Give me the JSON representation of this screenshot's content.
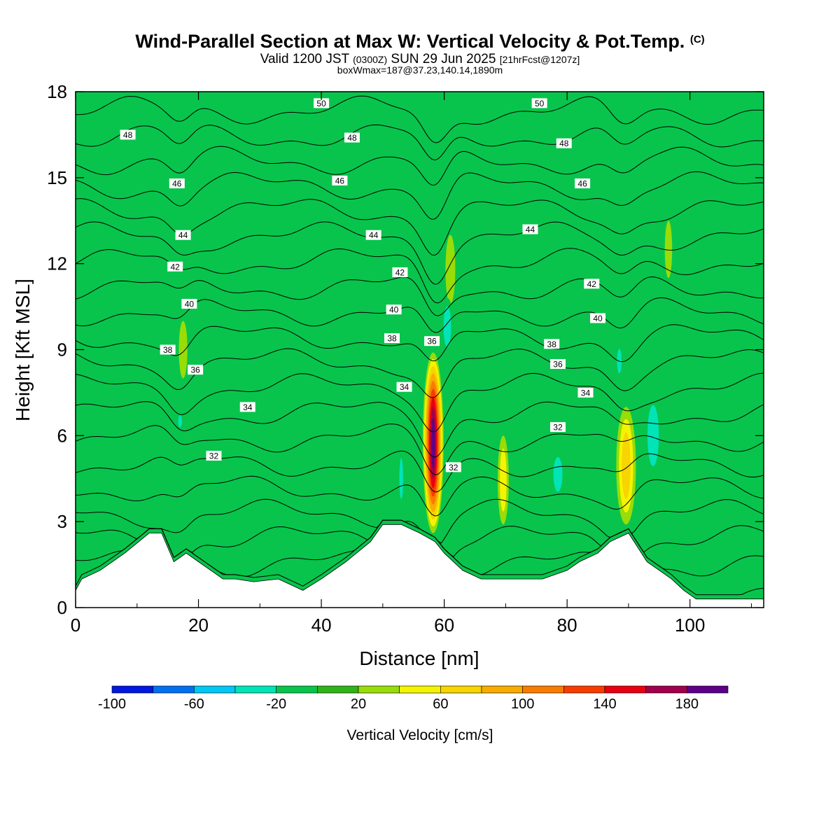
{
  "title": {
    "main": "Wind-Parallel Section at Max W: Vertical Velocity & Pot.Temp.",
    "copyright": "(C)",
    "valid_prefix": "Valid 1200 JST",
    "valid_utc": "(0300Z)",
    "valid_date": "SUN 29 Jun 2025",
    "forecast": "[21hrFcst@1207z]",
    "boxwmax": "boxWmax=187@37.23,140.14,1890m"
  },
  "chart_data": {
    "type": "heatmap",
    "xlabel": "Distance [nm]",
    "ylabel": "Height [Kft MSL]",
    "xlim": [
      0,
      112
    ],
    "ylim": [
      0,
      18
    ],
    "x_ticks": [
      0,
      20,
      40,
      60,
      80,
      100
    ],
    "y_ticks": [
      0,
      3,
      6,
      9,
      12,
      15,
      18
    ],
    "colorbar": {
      "title": "Vertical Velocity [cm/s]",
      "ticks": [
        -100,
        -60,
        -20,
        20,
        60,
        100,
        140,
        180
      ],
      "range": [
        -100,
        200
      ],
      "step": 20,
      "colors": [
        "#0018e0",
        "#0070f0",
        "#00c8f4",
        "#00e4b8",
        "#08c44c",
        "#2eb418",
        "#98dc08",
        "#f4f400",
        "#f8d400",
        "#f8ac00",
        "#f87c00",
        "#f83c00",
        "#e80010",
        "#a0004c",
        "#5c0088"
      ]
    },
    "background_w_class": "#08c44c",
    "w_features": [
      {
        "x": 58.2,
        "y_bottom": 2.6,
        "y_top": 8.9,
        "halfwidth": 1.7,
        "peak": 187
      },
      {
        "x": 89.6,
        "y_bottom": 2.9,
        "y_top": 7.0,
        "halfwidth": 1.6,
        "peak": 70
      },
      {
        "x": 69.6,
        "y_bottom": 2.9,
        "y_top": 6.0,
        "halfwidth": 0.9,
        "peak": 40
      },
      {
        "x": 61.0,
        "y_bottom": 10.6,
        "y_top": 13.0,
        "halfwidth": 0.8,
        "peak": 30
      },
      {
        "x": 96.5,
        "y_bottom": 11.5,
        "y_top": 13.5,
        "halfwidth": 0.6,
        "peak": 25
      },
      {
        "x": 17.5,
        "y_bottom": 8.0,
        "y_top": 10.0,
        "halfwidth": 0.7,
        "peak": 25
      },
      {
        "x": 78.5,
        "y_bottom": 3.8,
        "y_top": 5.5,
        "halfwidth": 1.2,
        "peak": -35
      },
      {
        "x": 94.0,
        "y_bottom": 4.5,
        "y_top": 7.5,
        "halfwidth": 1.5,
        "peak": -30
      },
      {
        "x": 88.5,
        "y_bottom": 8.0,
        "y_top": 9.2,
        "halfwidth": 0.6,
        "peak": -30
      },
      {
        "x": 60.5,
        "y_bottom": 8.8,
        "y_top": 10.8,
        "halfwidth": 1.0,
        "peak": -25
      },
      {
        "x": 17.0,
        "y_bottom": 6.2,
        "y_top": 6.8,
        "halfwidth": 0.5,
        "peak": -25
      },
      {
        "x": 53.0,
        "y_bottom": 3.5,
        "y_top": 5.5,
        "halfwidth": 0.5,
        "peak": -25
      }
    ],
    "terrain": {
      "x": [
        0,
        1,
        4,
        8,
        12,
        14,
        16,
        18,
        20,
        22,
        24,
        26,
        29,
        33,
        37,
        40,
        44,
        48,
        50,
        53,
        56,
        58.5,
        60,
        63,
        66,
        72,
        76,
        80,
        82,
        85,
        87,
        90,
        93,
        95,
        97,
        99,
        101,
        104,
        108,
        112
      ],
      "height": [
        0.6,
        1.0,
        1.3,
        1.9,
        2.6,
        2.6,
        1.6,
        1.9,
        1.6,
        1.3,
        1.0,
        1.0,
        0.9,
        1.0,
        0.6,
        1.0,
        1.6,
        2.3,
        2.9,
        2.9,
        2.6,
        2.3,
        1.9,
        1.3,
        1.0,
        1.0,
        1.0,
        1.3,
        1.6,
        1.9,
        2.3,
        2.6,
        1.6,
        1.3,
        1.0,
        0.6,
        0.3,
        0.3,
        0.3,
        0.3
      ]
    },
    "theta_levels": [
      31,
      32,
      33,
      34,
      35,
      36,
      37,
      38,
      39,
      40,
      41,
      42,
      43,
      44,
      45,
      46,
      47,
      48,
      49,
      50
    ],
    "contour_labels": [
      {
        "text": "50",
        "x": 40,
        "y": 17.6
      },
      {
        "text": "50",
        "x": 75.5,
        "y": 17.6
      },
      {
        "text": "48",
        "x": 8.5,
        "y": 16.5
      },
      {
        "text": "48",
        "x": 45,
        "y": 16.4
      },
      {
        "text": "48",
        "x": 79.5,
        "y": 16.2
      },
      {
        "text": "46",
        "x": 16.5,
        "y": 14.8
      },
      {
        "text": "46",
        "x": 43,
        "y": 14.9
      },
      {
        "text": "46",
        "x": 82.5,
        "y": 14.8
      },
      {
        "text": "44",
        "x": 17.5,
        "y": 13.0
      },
      {
        "text": "44",
        "x": 48.5,
        "y": 13.0
      },
      {
        "text": "44",
        "x": 74,
        "y": 13.2
      },
      {
        "text": "42",
        "x": 16.2,
        "y": 11.9
      },
      {
        "text": "42",
        "x": 52.8,
        "y": 11.7
      },
      {
        "text": "42",
        "x": 84,
        "y": 11.3
      },
      {
        "text": "40",
        "x": 18.5,
        "y": 10.6
      },
      {
        "text": "40",
        "x": 51.8,
        "y": 10.4
      },
      {
        "text": "40",
        "x": 85,
        "y": 10.1
      },
      {
        "text": "38",
        "x": 15,
        "y": 9.0
      },
      {
        "text": "38",
        "x": 51.5,
        "y": 9.4
      },
      {
        "text": "38",
        "x": 77.5,
        "y": 9.2
      },
      {
        "text": "36",
        "x": 19.5,
        "y": 8.3
      },
      {
        "text": "36",
        "x": 58,
        "y": 9.3
      },
      {
        "text": "36",
        "x": 78.5,
        "y": 8.5
      },
      {
        "text": "34",
        "x": 28,
        "y": 7.0
      },
      {
        "text": "34",
        "x": 53.5,
        "y": 7.7
      },
      {
        "text": "34",
        "x": 83,
        "y": 7.5
      },
      {
        "text": "32",
        "x": 22.5,
        "y": 5.3
      },
      {
        "text": "32",
        "x": 78.5,
        "y": 6.3
      },
      {
        "text": "32",
        "x": 61.5,
        "y": 4.9
      }
    ]
  }
}
